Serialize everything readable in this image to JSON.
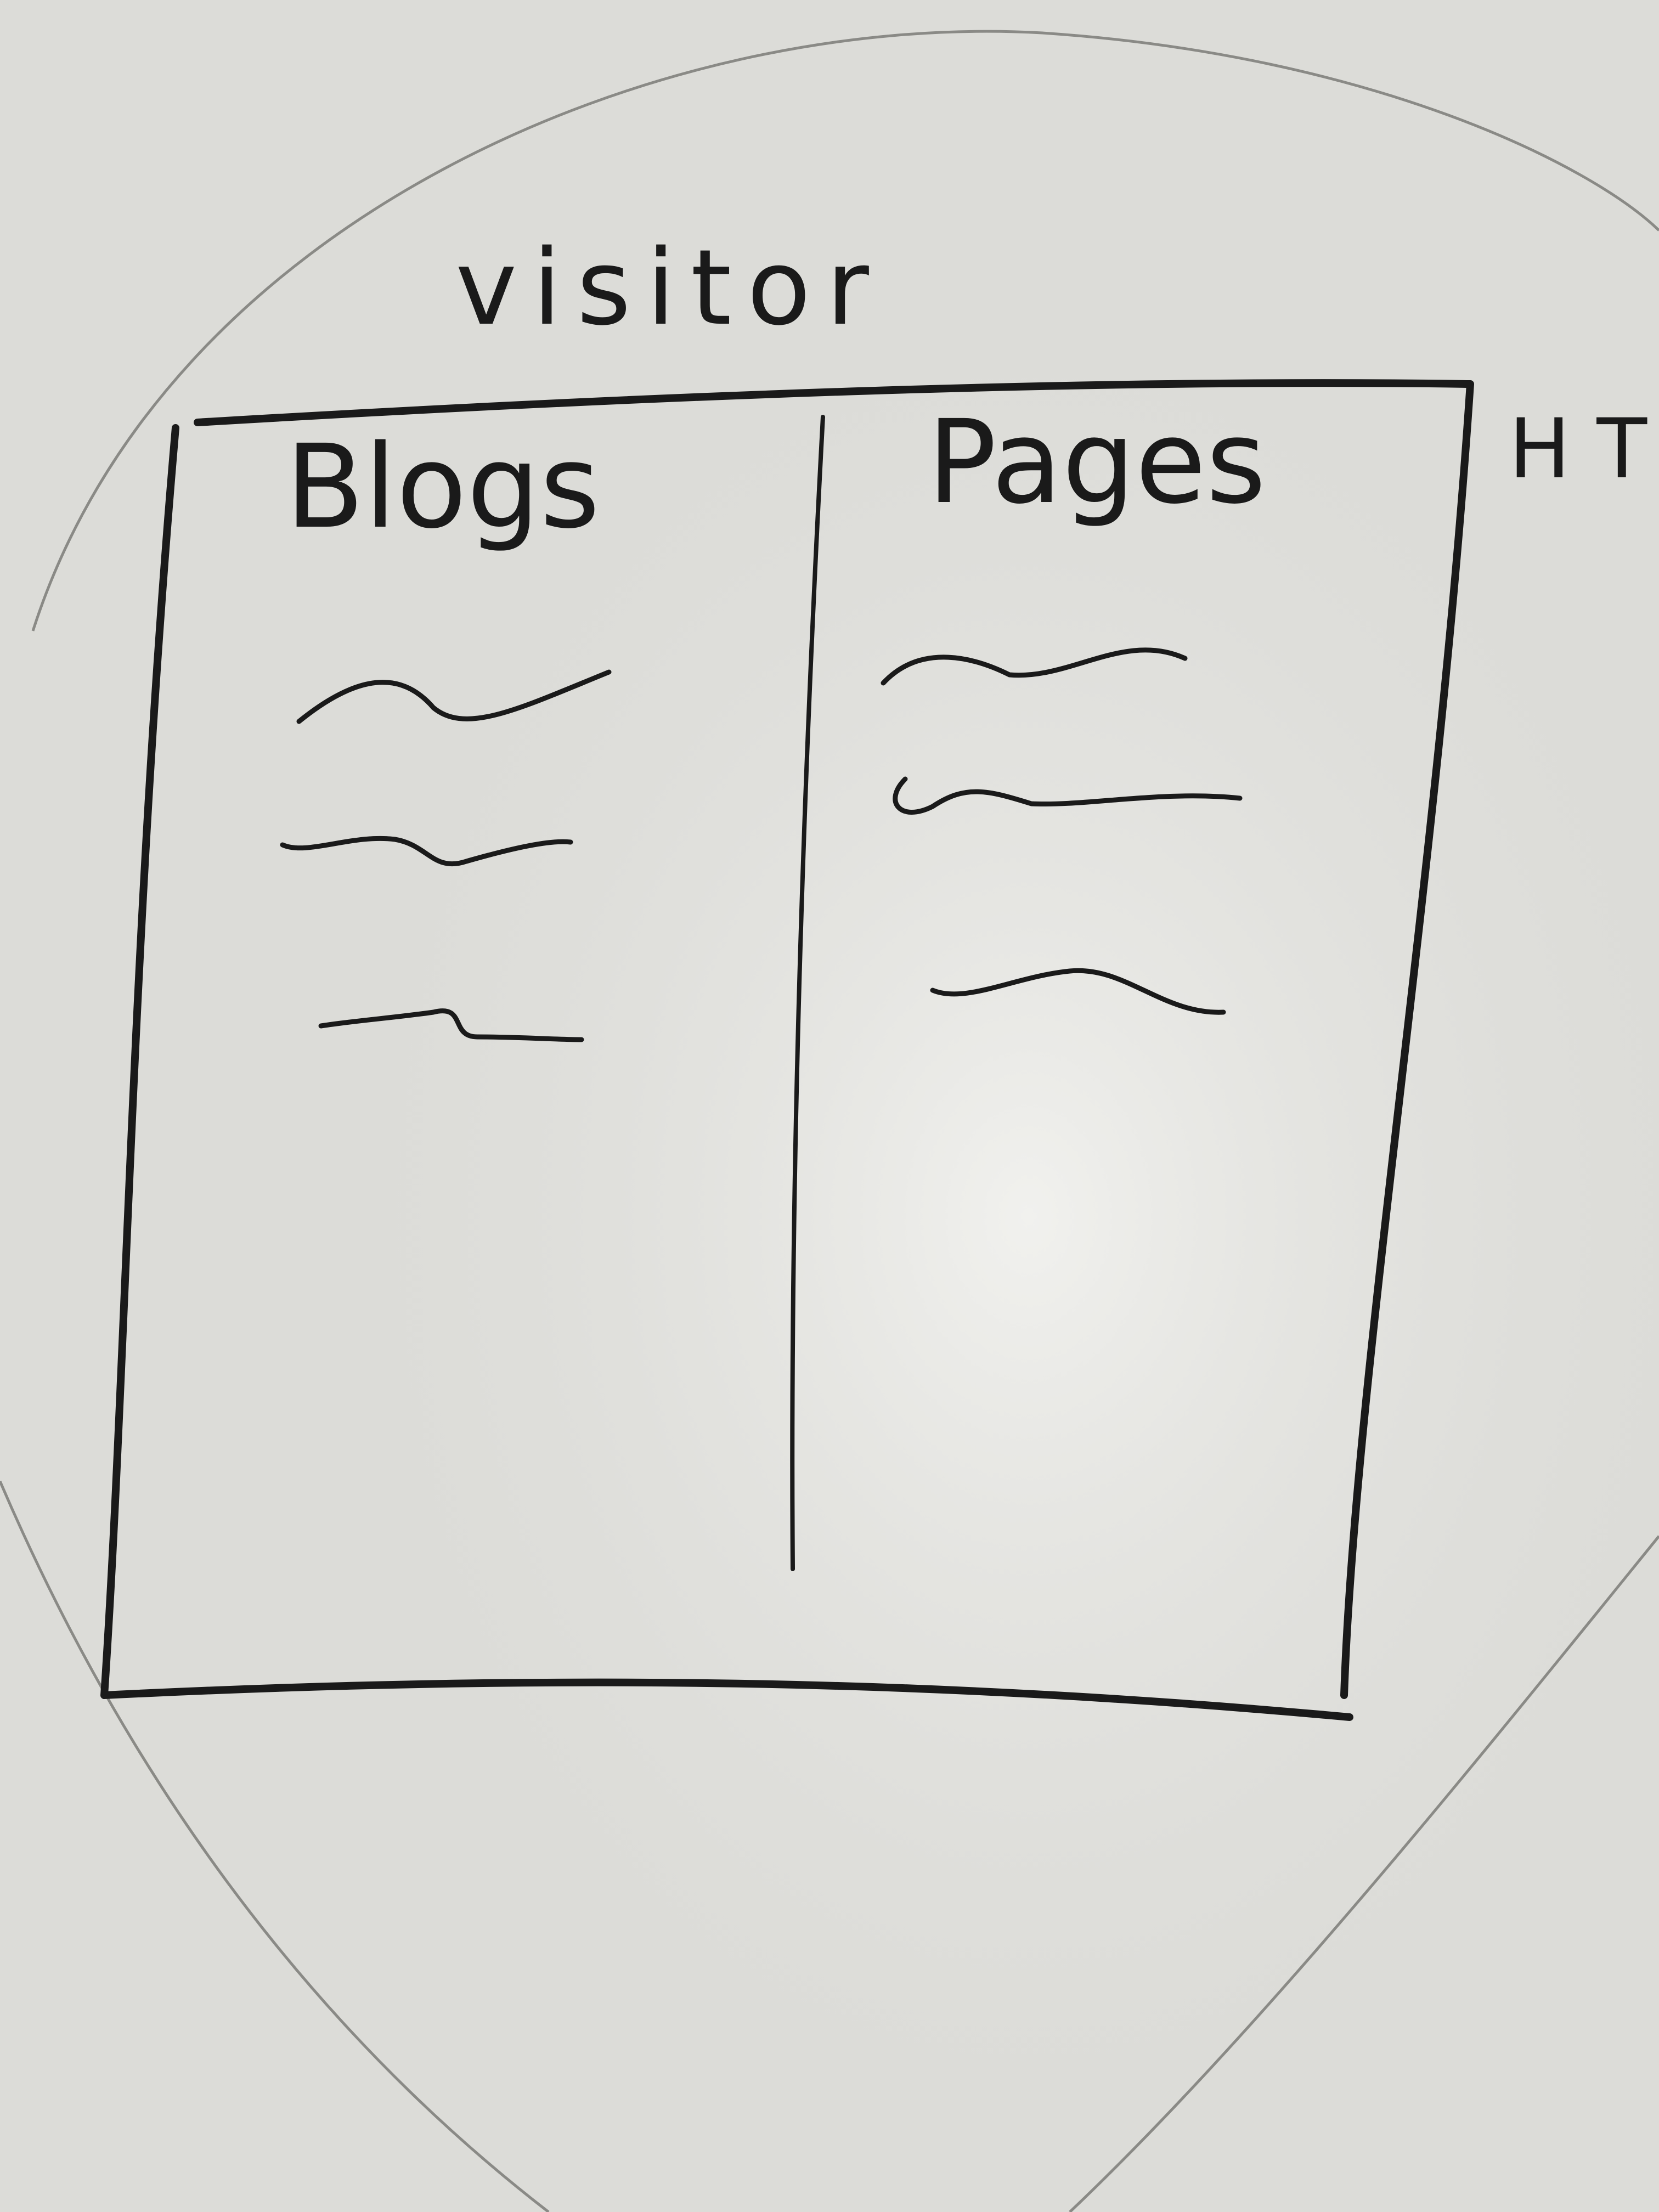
{
  "title": "visitor",
  "side_note": "H T",
  "columns": [
    {
      "heading": "Blogs",
      "items": 3
    },
    {
      "heading": "Pages",
      "items": 3
    }
  ],
  "colors": {
    "board": "#dcdcd8",
    "marker": "#1a1a1a",
    "ghost_lines": "#8a8a86"
  }
}
